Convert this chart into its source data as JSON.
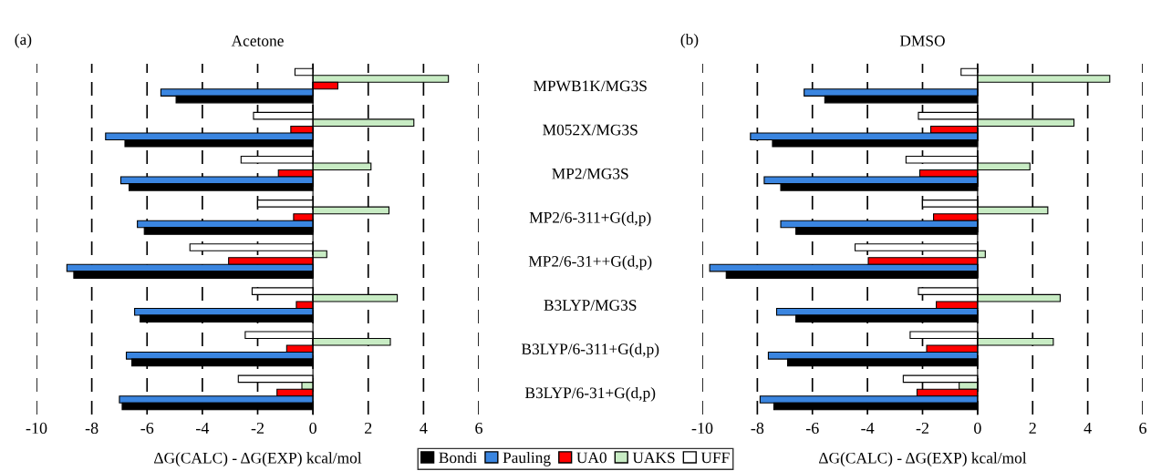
{
  "chart_data": [
    {
      "type": "bar",
      "orientation": "horizontal",
      "title": "Acetone",
      "annotations": [
        "(a)"
      ],
      "xlabel": "ΔG(CALC) - ΔG(EXP) kcal/mol",
      "categories": [
        "MPWB1K/MG3S",
        "M052X/MG3S",
        "MP2/MG3S",
        "MP2/6-311+G(d,p)",
        "MP2/6-31++G(d,p)",
        "B3LYP/MG3S",
        "B3LYP/6-311+G(d,p)",
        "B3LYP/6-31+G(d,p)"
      ],
      "series": [
        {
          "name": "UFF",
          "color": "#ffffff",
          "values": [
            -0.65,
            -2.15,
            -2.6,
            -2.0,
            -4.45,
            -2.2,
            -2.45,
            -2.7
          ]
        },
        {
          "name": "UAKS",
          "color": "#c8ecc4",
          "values": [
            4.9,
            3.65,
            2.1,
            2.75,
            0.5,
            3.05,
            2.8,
            -0.4
          ]
        },
        {
          "name": "UA0",
          "color": "#ff0000",
          "values": [
            0.9,
            -0.8,
            -1.25,
            -0.7,
            -3.05,
            -0.6,
            -0.95,
            -1.3
          ]
        },
        {
          "name": "Pauling",
          "color": "#3a85e0",
          "values": [
            -5.5,
            -7.5,
            -6.95,
            -6.35,
            -8.9,
            -6.45,
            -6.75,
            -7.0
          ]
        },
        {
          "name": "Bondi",
          "color": "#000000",
          "values": [
            -4.95,
            -6.8,
            -6.65,
            -6.1,
            -8.65,
            -6.25,
            -6.55,
            -6.9
          ]
        }
      ],
      "xlim": [
        -10,
        6
      ],
      "xticks": [
        -10,
        -8,
        -6,
        -4,
        -2,
        0,
        2,
        4,
        6
      ],
      "grid": "x",
      "legend": "bottom"
    },
    {
      "type": "bar",
      "orientation": "horizontal",
      "title": "DMSO",
      "annotations": [
        "(b)"
      ],
      "xlabel": "ΔG(CALC) - ΔG(EXP) kcal/mol",
      "categories": [
        null,
        null,
        null,
        null,
        null,
        null,
        null,
        null
      ],
      "series": [
        {
          "color": "#ffffff",
          "values": [
            -0.6,
            -2.15,
            -2.6,
            -2.0,
            -4.45,
            -2.15,
            -2.45,
            -2.7
          ]
        },
        {
          "color": "#c8ecc4",
          "values": [
            4.8,
            3.5,
            1.9,
            2.55,
            0.28,
            3.0,
            2.75,
            -0.67
          ]
        },
        {
          "color": "#ff0000",
          "values": [
            null,
            -1.7,
            -2.1,
            -1.6,
            -3.97,
            -1.5,
            -1.85,
            -2.2
          ]
        },
        {
          "color": "#3a85e0",
          "values": [
            -6.3,
            -8.25,
            -7.75,
            -7.15,
            -9.73,
            -7.3,
            -7.6,
            -7.9
          ]
        },
        {
          "color": "#000000",
          "values": [
            -5.55,
            -7.45,
            -7.15,
            -6.6,
            -9.13,
            -6.6,
            -6.9,
            -7.4
          ]
        }
      ],
      "xlim": [
        -10,
        6
      ],
      "xticks": [
        -10,
        -8,
        -6,
        -4,
        -2,
        0,
        2,
        4,
        6
      ],
      "grid": "x",
      "tick_labels": "x"
    }
  ]
}
